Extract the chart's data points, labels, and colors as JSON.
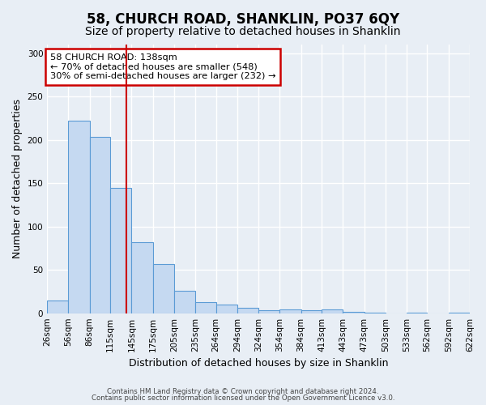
{
  "title": "58, CHURCH ROAD, SHANKLIN, PO37 6QY",
  "subtitle": "Size of property relative to detached houses in Shanklin",
  "xlabel": "Distribution of detached houses by size in Shanklin",
  "ylabel": "Number of detached properties",
  "bin_edges": [
    26,
    56,
    86,
    115,
    145,
    175,
    205,
    235,
    264,
    294,
    324,
    354,
    384,
    413,
    443,
    473,
    503,
    533,
    562,
    592,
    622
  ],
  "bin_labels": [
    "26sqm",
    "56sqm",
    "86sqm",
    "115sqm",
    "145sqm",
    "175sqm",
    "205sqm",
    "235sqm",
    "264sqm",
    "294sqm",
    "324sqm",
    "354sqm",
    "384sqm",
    "413sqm",
    "443sqm",
    "473sqm",
    "503sqm",
    "533sqm",
    "562sqm",
    "592sqm",
    "622sqm"
  ],
  "bar_heights": [
    15,
    222,
    203,
    145,
    82,
    57,
    26,
    13,
    10,
    6,
    3,
    4,
    3,
    4,
    2,
    1,
    0,
    1,
    0,
    1
  ],
  "bar_color": "#c5d9f1",
  "bar_edge_color": "#5b9bd5",
  "vline_x": 138,
  "vline_color": "#cc0000",
  "annotation_title": "58 CHURCH ROAD: 138sqm",
  "annotation_line1": "← 70% of detached houses are smaller (548)",
  "annotation_line2": "30% of semi-detached houses are larger (232) →",
  "annotation_box_color": "#ffffff",
  "annotation_box_edge": "#cc0000",
  "ylim": [
    0,
    310
  ],
  "yticks": [
    0,
    50,
    100,
    150,
    200,
    250,
    300
  ],
  "background_color": "#e8eef5",
  "plot_bg_color": "#e8eef5",
  "footer_line1": "Contains HM Land Registry data © Crown copyright and database right 2024.",
  "footer_line2": "Contains public sector information licensed under the Open Government Licence v3.0.",
  "title_fontsize": 12,
  "subtitle_fontsize": 10,
  "axis_label_fontsize": 9,
  "tick_fontsize": 7.5
}
